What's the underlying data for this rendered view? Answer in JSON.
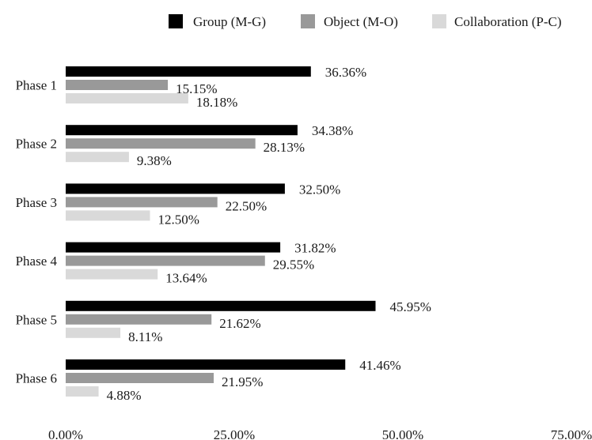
{
  "chart_data": {
    "type": "bar",
    "orientation": "horizontal",
    "categories": [
      "Phase 1",
      "Phase 2",
      "Phase 3",
      "Phase 4",
      "Phase 5",
      "Phase 6"
    ],
    "series": [
      {
        "name": "Group (M-G)",
        "color": "#000000",
        "values": [
          36.36,
          34.38,
          32.5,
          31.82,
          45.95,
          41.46
        ],
        "labels": [
          "36.36%",
          "34.38%",
          "32.50%",
          "31.82%",
          "45.95%",
          "41.46%"
        ]
      },
      {
        "name": "Object (M-O)",
        "color": "#999999",
        "values": [
          15.15,
          28.13,
          22.5,
          29.55,
          21.62,
          21.95
        ],
        "labels": [
          "15.15%",
          "28.13%",
          "22.50%",
          "29.55%",
          "21.62%",
          "21.95%"
        ]
      },
      {
        "name": "Collaboration (P-C)",
        "color": "#d9d9d9",
        "values": [
          18.18,
          9.38,
          12.5,
          13.64,
          8.11,
          4.88
        ],
        "labels": [
          "18.18%",
          "9.38%",
          "12.50%",
          "13.64%",
          "8.11%",
          "4.88%"
        ]
      }
    ],
    "xlim": [
      0,
      75
    ],
    "xticks": [
      0,
      25,
      50,
      75
    ],
    "xtick_labels": [
      "0.00%",
      "25.00%",
      "50.00%",
      "75.00%"
    ],
    "title": "",
    "xlabel": "",
    "ylabel": "",
    "grid": false,
    "legend_position": "top-right"
  }
}
